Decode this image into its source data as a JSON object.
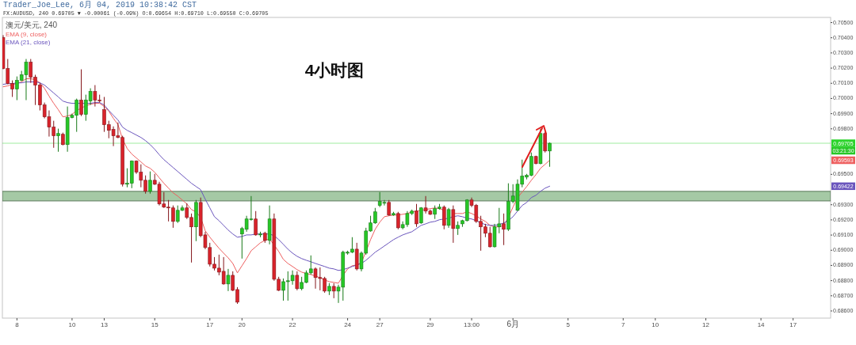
{
  "chart_data": {
    "type": "candlestick",
    "title": "4小时图",
    "subtitle": "FX:AUDUSD, 240 0.69705 ▼ -0.00061 (-0.09%) O:0.69654 H:0.69710 L:0.69550 C:0.69705",
    "legend_title": "澳元/美元, 240",
    "legend": "top left",
    "annotations": [
      "Trader_Joe_Lee, 6月 04, 2019 10:38:42 CST",
      {
        "text": "03:21:30",
        "y": 0.69705
      },
      {
        "text": "0.69593",
        "y": 0.69593
      },
      {
        "text": "0.69422",
        "y": 0.69422
      }
    ],
    "categories": [
      null,
      null,
      null,
      "8",
      null,
      null,
      null,
      null,
      null,
      null,
      null,
      null,
      null,
      null,
      null,
      "10",
      null,
      null,
      null,
      null,
      null,
      null,
      "13",
      null,
      null,
      null,
      null,
      null,
      null,
      null,
      null,
      null,
      null,
      "15",
      null,
      null,
      null,
      null,
      null,
      null,
      null,
      null,
      null,
      null,
      null,
      "17",
      null,
      null,
      null,
      null,
      null,
      null,
      "20",
      null,
      null,
      null,
      null,
      null,
      null,
      null,
      null,
      null,
      null,
      "22",
      null,
      null,
      null,
      null,
      null,
      null,
      null,
      null,
      null,
      null,
      null,
      "24",
      null,
      null,
      null,
      null,
      null,
      null,
      "27",
      null,
      null,
      null,
      null,
      null,
      null,
      null,
      null,
      null,
      null,
      "29",
      null,
      null,
      null,
      null,
      null,
      null,
      null,
      null,
      "13:00",
      null,
      null,
      null,
      null,
      null,
      null,
      null,
      null,
      "6月",
      null,
      null,
      null,
      null,
      null,
      null,
      null,
      null,
      null,
      null,
      null,
      "5",
      null,
      null,
      null,
      null,
      null,
      null,
      null,
      null,
      null,
      null,
      null,
      "7",
      null,
      null,
      null,
      null,
      null,
      null,
      "10",
      null,
      null,
      null,
      null,
      null,
      null,
      null,
      null,
      null,
      null,
      "12",
      null,
      null,
      null,
      null,
      null,
      null,
      null,
      null,
      null,
      null,
      null,
      "14",
      null,
      null,
      null,
      null,
      null,
      null,
      "17",
      null,
      null,
      null,
      null,
      null,
      null,
      null,
      null
    ],
    "ohlc": [
      [
        0.70401,
        0.70417,
        0.70192,
        0.70197
      ],
      [
        0.70197,
        0.7026,
        0.70093,
        0.70098
      ],
      [
        0.70098,
        0.70119,
        0.7001,
        0.70062
      ],
      [
        0.70062,
        0.70145,
        0.69989,
        0.70119
      ],
      [
        0.70119,
        0.70182,
        0.70114,
        0.70156
      ],
      [
        0.70156,
        0.7026,
        0.69989,
        0.70239
      ],
      [
        0.70239,
        0.7026,
        0.70103,
        0.7014
      ],
      [
        0.7014,
        0.70156,
        0.69957,
        0.70088
      ],
      [
        0.70088,
        0.70103,
        0.69921,
        0.69957
      ],
      [
        0.69957,
        0.69973,
        0.69869,
        0.69879
      ],
      [
        0.69879,
        0.69921,
        0.69749,
        0.69811
      ],
      [
        0.69811,
        0.69853,
        0.69675,
        0.69754
      ],
      [
        0.69754,
        0.69801,
        0.69649,
        0.69769
      ],
      [
        0.69764,
        0.69775,
        0.69691,
        0.69696
      ],
      [
        0.69696,
        0.69947,
        0.69649,
        0.69874
      ],
      [
        0.69874,
        0.699,
        0.69869,
        0.69889
      ],
      [
        0.69889,
        0.69999,
        0.6978,
        0.69989
      ],
      [
        0.69989,
        0.70192,
        0.69884,
        0.69895
      ],
      [
        0.69895,
        0.70025,
        0.69853,
        0.69989
      ],
      [
        0.69983,
        0.70067,
        0.69957,
        0.70046
      ],
      [
        0.70046,
        0.70088,
        0.69947,
        0.69989
      ],
      [
        0.69989,
        0.70025,
        0.69973,
        0.69983
      ],
      [
        0.69926,
        0.7001,
        0.6978,
        0.69827
      ],
      [
        0.69827,
        0.69853,
        0.69738,
        0.6979
      ],
      [
        0.69796,
        0.69816,
        0.69686,
        0.69754
      ],
      [
        0.69754,
        0.69842,
        0.69738,
        0.69743
      ],
      [
        0.69743,
        0.69754,
        0.6942,
        0.69435
      ],
      [
        0.69435,
        0.6954,
        0.69415,
        0.69441
      ],
      [
        0.69441,
        0.69592,
        0.69409,
        0.69587
      ],
      [
        0.69587,
        0.69592,
        0.69503,
        0.69514
      ],
      [
        0.69514,
        0.69566,
        0.69415,
        0.69461
      ],
      [
        0.69461,
        0.69493,
        0.69373,
        0.69388
      ],
      [
        0.69388,
        0.69519,
        0.69373,
        0.69461
      ],
      [
        0.69461,
        0.69503,
        0.6943,
        0.69435
      ],
      [
        0.69435,
        0.69451,
        0.69295,
        0.69305
      ],
      [
        0.69305,
        0.69383,
        0.69279,
        0.69284
      ],
      [
        0.69284,
        0.69331,
        0.6919,
        0.69279
      ],
      [
        0.69279,
        0.69295,
        0.69148,
        0.6919
      ],
      [
        0.6919,
        0.69295,
        0.6918,
        0.69263
      ],
      [
        0.69263,
        0.69295,
        0.69258,
        0.69279
      ],
      [
        0.69279,
        0.6931,
        0.69206,
        0.69216
      ],
      [
        0.69216,
        0.69242,
        0.68919,
        0.69154
      ],
      [
        0.69154,
        0.69331,
        0.6906,
        0.69315
      ],
      [
        0.69315,
        0.69347,
        0.69086,
        0.69096
      ],
      [
        0.69101,
        0.69122,
        0.69007,
        0.69018
      ],
      [
        0.69018,
        0.69049,
        0.68893,
        0.68908
      ],
      [
        0.68908,
        0.68955,
        0.68867,
        0.68882
      ],
      [
        0.68882,
        0.68971,
        0.68835,
        0.68856
      ],
      [
        0.68861,
        0.68955,
        0.68773,
        0.68778
      ],
      [
        0.68778,
        0.68877,
        0.68731,
        0.68835
      ],
      [
        0.68835,
        0.68861,
        0.68731,
        0.68736
      ],
      [
        0.68741,
        0.68757,
        0.68647,
        0.68658
      ],
      [
        0.69107,
        0.69154,
        0.68945,
        0.69143
      ],
      [
        0.69138,
        0.69227,
        0.69122,
        0.69206
      ],
      [
        0.69201,
        0.69357,
        0.69195,
        0.69206
      ],
      [
        0.69206,
        0.69258,
        0.69096,
        0.69101
      ],
      [
        0.69101,
        0.69122,
        0.69086,
        0.69107
      ],
      [
        0.69112,
        0.69122,
        0.69049,
        0.69065
      ],
      [
        0.69065,
        0.69295,
        0.69039,
        0.69206
      ],
      [
        0.69206,
        0.69242,
        0.68799,
        0.68809
      ],
      [
        0.68809,
        0.68825,
        0.68731,
        0.68736
      ],
      [
        0.68736,
        0.68814,
        0.68668,
        0.68793
      ],
      [
        0.68793,
        0.68861,
        0.68668,
        0.68799
      ],
      [
        0.68799,
        0.68867,
        0.68773,
        0.68835
      ],
      [
        0.68835,
        0.68861,
        0.68736,
        0.68747
      ],
      [
        0.68747,
        0.68825,
        0.68736,
        0.68788
      ],
      [
        0.68788,
        0.68867,
        0.68783,
        0.68851
      ],
      [
        0.68851,
        0.68966,
        0.6884,
        0.68877
      ],
      [
        0.68877,
        0.68887,
        0.68747,
        0.6882
      ],
      [
        0.6882,
        0.68887,
        0.68736,
        0.68814
      ],
      [
        0.68814,
        0.68825,
        0.6872,
        0.68731
      ],
      [
        0.68731,
        0.68783,
        0.68705,
        0.68762
      ],
      [
        0.68762,
        0.68783,
        0.68684,
        0.68731
      ],
      [
        0.68731,
        0.68773,
        0.68653,
        0.68757
      ],
      [
        0.68757,
        0.68997,
        0.68668,
        0.68987
      ],
      [
        0.68981,
        0.68997,
        0.68971,
        0.68987
      ],
      [
        0.68987,
        0.69086,
        0.68981,
        0.69007
      ],
      [
        0.69007,
        0.69049,
        0.68867,
        0.68877
      ],
      [
        0.68877,
        0.68992,
        0.68861,
        0.68981
      ],
      [
        0.68981,
        0.69148,
        0.68971,
        0.69127
      ],
      [
        0.69127,
        0.69227,
        0.69122,
        0.6918
      ],
      [
        0.6918,
        0.69279,
        0.69174,
        0.69253
      ],
      [
        0.69295,
        0.69383,
        0.69284,
        0.69321
      ],
      [
        0.6931,
        0.69331,
        0.69295,
        0.69315
      ],
      [
        0.69315,
        0.69331,
        0.69227,
        0.69232
      ],
      [
        0.69232,
        0.69253,
        0.69227,
        0.69242
      ],
      [
        0.69242,
        0.69253,
        0.69138,
        0.69148
      ],
      [
        0.69148,
        0.6919,
        0.69138,
        0.69169
      ],
      [
        0.69169,
        0.69258,
        0.69154,
        0.69242
      ],
      [
        0.69242,
        0.69268,
        0.69232,
        0.69258
      ],
      [
        0.69258,
        0.69305,
        0.69154,
        0.69174
      ],
      [
        0.6918,
        0.69284,
        0.69174,
        0.69279
      ],
      [
        0.69279,
        0.69357,
        0.69242,
        0.69258
      ],
      [
        0.69258,
        0.69268,
        0.69232,
        0.69237
      ],
      [
        0.69237,
        0.69295,
        0.69206,
        0.69274
      ],
      [
        0.69274,
        0.69305,
        0.69268,
        0.69284
      ],
      [
        0.69284,
        0.69295,
        0.69138,
        0.69164
      ],
      [
        0.69164,
        0.69279,
        0.69148,
        0.69268
      ],
      [
        0.69268,
        0.69295,
        0.69049,
        0.69143
      ],
      [
        0.69143,
        0.6919,
        0.69101,
        0.69164
      ],
      [
        0.69174,
        0.69201,
        0.69154,
        0.69195
      ],
      [
        0.69195,
        0.69336,
        0.6919,
        0.69331
      ],
      [
        0.69331,
        0.69347,
        0.69284,
        0.69295
      ],
      [
        0.69295,
        0.69305,
        0.6918,
        0.6919
      ],
      [
        0.6919,
        0.69227,
        0.68997,
        0.69154
      ],
      [
        0.69154,
        0.69174,
        0.69086,
        0.69112
      ],
      [
        0.69112,
        0.69154,
        0.69018,
        0.69023
      ],
      [
        0.69023,
        0.69174,
        0.69018,
        0.69154
      ],
      [
        0.69154,
        0.69279,
        0.69112,
        0.69174
      ],
      [
        0.69174,
        0.69242,
        0.69034,
        0.69138
      ],
      [
        0.69138,
        0.69441,
        0.69127,
        0.69321
      ],
      [
        0.69321,
        0.69435,
        0.6931,
        0.69357
      ],
      [
        0.69263,
        0.69467,
        0.69258,
        0.69435
      ],
      [
        0.69435,
        0.69597,
        0.69415,
        0.69488
      ],
      [
        0.69482,
        0.69503,
        0.69467,
        0.69493
      ],
      [
        0.69493,
        0.69644,
        0.69488,
        0.69618
      ],
      [
        0.69618,
        0.69623,
        0.69566,
        0.69571
      ],
      [
        0.69571,
        0.69801,
        0.69566,
        0.69769
      ],
      [
        0.69769,
        0.6978,
        0.69644,
        0.69654
      ],
      [
        0.69654,
        0.6971,
        0.6955,
        0.69705
      ],
      null,
      null,
      null,
      null,
      null,
      null,
      null,
      null,
      null,
      null,
      null,
      null,
      null,
      null,
      null,
      null,
      null,
      null,
      null,
      null,
      null,
      null,
      null,
      null,
      null,
      null,
      null,
      null,
      null,
      null,
      null,
      null,
      null,
      null,
      null,
      null,
      null,
      null,
      null,
      null,
      null,
      null,
      null,
      null,
      null,
      null,
      null,
      null,
      null,
      null,
      null,
      null,
      null,
      null,
      null,
      null,
      null,
      null,
      null,
      null,
      null
    ],
    "colors": [
      "#d9232b",
      "#d9232b",
      "#d9232b",
      "#26c826",
      "#26c826",
      "#26c826",
      "#d9232b",
      "#d9232b",
      "#d9232b",
      "#d9232b",
      "#d9232b",
      "#d9232b",
      "#26c826",
      "#d9232b",
      "#26c826",
      "#26c826",
      "#26c826",
      "#d9232b",
      "#26c826",
      "#26c826",
      "#d9232b",
      "#d9232b",
      "#d9232b",
      "#d9232b",
      "#d9232b",
      "#d9232b",
      "#d9232b",
      "#26c826",
      "#26c826",
      "#d9232b",
      "#d9232b",
      "#d9232b",
      "#26c826",
      "#d9232b",
      "#d9232b",
      "#d9232b",
      "#d9232b",
      "#d9232b",
      "#26c826",
      "#26c826",
      "#d9232b",
      "#d9232b",
      "#26c826",
      "#d9232b",
      "#d9232b",
      "#d9232b",
      "#d9232b",
      "#d9232b",
      "#d9232b",
      "#26c826",
      "#d9232b",
      "#d9232b",
      "#26c826",
      "#26c826",
      "#26c826",
      "#d9232b",
      "#26c826",
      "#d9232b",
      "#26c826",
      "#d9232b",
      "#d9232b",
      "#26c826",
      "#26c826",
      "#26c826",
      "#d9232b",
      "#26c826",
      "#26c826",
      "#26c826",
      "#d9232b",
      "#d9232b",
      "#d9232b",
      "#26c826",
      "#d9232b",
      "#26c826",
      "#26c826",
      "#26c826",
      "#26c826",
      "#d9232b",
      "#26c826",
      "#26c826",
      "#26c826",
      "#26c826",
      "#26c826",
      "#26c826",
      "#d9232b",
      "#26c826",
      "#d9232b",
      "#26c826",
      "#26c826",
      "#26c826",
      "#d9232b",
      "#26c826",
      "#d9232b",
      "#d9232b",
      "#26c826",
      "#26c826",
      "#d9232b",
      "#26c826",
      "#d9232b",
      "#26c826",
      "#26c826",
      "#26c826",
      "#d9232b",
      "#d9232b",
      "#d9232b",
      "#d9232b",
      "#d9232b",
      "#26c826",
      "#26c826",
      "#d9232b",
      "#26c826",
      "#26c826",
      "#26c826",
      "#26c826",
      "#26c826",
      "#26c826",
      "#d9232b",
      "#26c826",
      "#d9232b",
      "#26c826",
      null,
      null,
      null,
      null,
      null,
      null,
      null,
      null,
      null,
      null,
      null,
      null,
      null,
      null,
      null,
      null,
      null,
      null,
      null,
      null,
      null,
      null,
      null,
      null,
      null,
      null,
      null,
      null,
      null,
      null,
      null,
      null,
      null,
      null,
      null,
      null,
      null,
      null,
      null,
      null,
      null,
      null,
      null,
      null,
      null,
      null,
      null,
      null,
      null,
      null,
      null,
      null,
      null,
      null,
      null,
      null,
      null,
      null,
      null,
      null,
      null
    ],
    "series": [
      {
        "name": "EMA (9, close)",
        "type": "line",
        "color": "#ee5f5f",
        "values": [
          0.70077,
          0.70083,
          0.70093,
          0.70098,
          0.70109,
          0.7013,
          0.7013,
          0.70124,
          0.70103,
          0.70067,
          0.70015,
          0.69968,
          0.69926,
          0.69879,
          0.69884,
          0.69895,
          0.69921,
          0.69936,
          0.69952,
          0.69962,
          0.69968,
          0.69968,
          0.69947,
          0.69916,
          0.69869,
          0.69827,
          0.69733,
          0.6967,
          0.69634,
          0.69608,
          0.69582,
          0.69555,
          0.6954,
          0.69514,
          0.69477,
          0.69441,
          0.69409,
          0.69378,
          0.69357,
          0.69331,
          0.69305,
          0.69268,
          0.69253,
          0.69216,
          0.69128,
          0.69086,
          0.69049,
          0.69013,
          0.68981,
          0.6895,
          0.68913,
          0.68851,
          0.68898,
          0.68945,
          0.68997,
          0.69023,
          0.69049,
          0.69065,
          0.69075,
          0.69034,
          0.68992,
          0.6894,
          0.68913,
          0.68893,
          0.68872,
          0.68856,
          0.68846,
          0.6884,
          0.6883,
          0.6882,
          0.68804,
          0.68793,
          0.68788,
          0.68783,
          0.68835,
          0.68877,
          0.68898,
          0.68903,
          0.68919,
          0.68992,
          0.6907,
          0.69138,
          0.69185,
          0.69221,
          0.69227,
          0.69232,
          0.69232,
          0.69237,
          0.69242,
          0.69253,
          0.69258,
          0.69263,
          0.69268,
          0.69274,
          0.69279,
          0.69274,
          0.69263,
          null,
          0.69242,
          0.69242,
          0.69242,
          0.69253,
          0.69242,
          0.69227,
          0.69206,
          0.6919,
          0.69164,
          0.69154,
          0.69154,
          0.69164,
          0.69216,
          0.69284,
          0.69347,
          0.69383,
          0.6942,
          0.69461,
          0.69498,
          0.6954,
          0.69566,
          0.69593,
          null,
          null,
          null,
          null,
          null,
          null,
          null,
          null,
          null,
          null,
          null,
          null,
          null,
          null,
          null,
          null,
          null,
          null,
          null,
          null,
          null,
          null,
          null,
          null,
          null,
          null,
          null,
          null,
          null,
          null,
          null,
          null,
          null,
          null,
          null,
          null,
          null,
          null,
          null,
          null,
          null,
          null,
          null,
          null,
          null,
          null,
          null,
          null,
          null,
          null,
          null,
          null,
          null,
          null,
          null,
          null,
          null,
          null,
          null,
          null,
          null
        ]
      },
      {
        "name": "EMA (21, close)",
        "type": "line",
        "color": "#6a55bd",
        "values": [
          0.70093,
          0.70098,
          0.70098,
          0.70103,
          0.70103,
          0.70109,
          0.70109,
          0.70109,
          0.70103,
          0.70088,
          0.70062,
          0.70036,
          0.7001,
          0.69983,
          0.69973,
          0.69968,
          0.69968,
          0.69968,
          0.69968,
          0.69968,
          0.69973,
          0.69973,
          0.69957,
          0.69921,
          0.69889,
          0.69858,
          0.69811,
          0.6979,
          0.69775,
          0.69759,
          0.69743,
          0.69722,
          0.69696,
          0.69665,
          0.69629,
          0.69597,
          0.69571,
          0.69545,
          0.69519,
          0.69493,
          0.69467,
          0.69441,
          0.6942,
          0.69399,
          0.69336,
          0.69279,
          0.69221,
          0.69195,
          0.69164,
          0.69133,
          0.69107,
          0.69086,
          0.69091,
          0.69101,
          0.69101,
          0.69107,
          0.69107,
          0.69107,
          0.69107,
          0.69096,
          0.6907,
          0.69039,
          0.69007,
          0.68981,
          0.6896,
          0.68945,
          0.68934,
          0.68924,
          0.68913,
          0.68903,
          0.68893,
          0.68882,
          0.68877,
          0.68867,
          0.68872,
          0.68882,
          0.68893,
          0.68903,
          0.68913,
          0.68934,
          0.6896,
          0.68987,
          0.69007,
          0.69028,
          0.69049,
          0.6907,
          0.69086,
          0.69101,
          0.69112,
          0.69122,
          0.69143,
          0.69164,
          0.69174,
          0.69185,
          0.6919,
          0.69201,
          0.69206,
          0.69211,
          0.69221,
          0.69227,
          0.69221,
          0.69211,
          0.69206,
          0.69195,
          0.6918,
          0.69169,
          0.69164,
          0.69164,
          0.69169,
          0.6918,
          0.69195,
          0.69221,
          0.69258,
          0.69295,
          0.69315,
          0.69347,
          0.69362,
          0.69388,
          0.69409,
          0.69422,
          null,
          null,
          null,
          null,
          null,
          null,
          null,
          null,
          null,
          null,
          null,
          null,
          null,
          null,
          null,
          null,
          null,
          null,
          null,
          null,
          null,
          null,
          null,
          null,
          null,
          null,
          null,
          null,
          null,
          null,
          null,
          null,
          null,
          null,
          null,
          null,
          null,
          null,
          null,
          null,
          null,
          null,
          null,
          null,
          null,
          null,
          null,
          null,
          null,
          null,
          null,
          null,
          null,
          null,
          null,
          null,
          null,
          null,
          null,
          null,
          null
        ]
      }
    ],
    "ylim": [
      0.68553,
      0.70534
    ],
    "yticks": [
      {
        "value": 0.705,
        "label": "0.70500"
      },
      {
        "value": 0.704,
        "label": "0.70400"
      },
      {
        "value": 0.703,
        "label": "0.70300"
      },
      {
        "value": 0.702,
        "label": "0.70200"
      },
      {
        "value": 0.701,
        "label": "0.70100"
      },
      {
        "value": 0.7,
        "label": "0.70000"
      },
      {
        "value": 0.699,
        "label": "0.69900"
      },
      {
        "value": 0.698,
        "label": "0.69800"
      },
      {
        "value": 0.695,
        "label": "0.69500"
      },
      {
        "value": 0.693,
        "label": "0.69300"
      },
      {
        "value": 0.692,
        "label": "0.69200"
      },
      {
        "value": 0.691,
        "label": "0.69100"
      },
      {
        "value": 0.69,
        "label": "0.69000"
      },
      {
        "value": 0.689,
        "label": "0.68900"
      },
      {
        "value": 0.688,
        "label": "0.68800"
      },
      {
        "value": 0.687,
        "label": "0.68700"
      },
      {
        "value": 0.686,
        "label": "0.68600"
      }
    ],
    "ref_lines": [
      {
        "axis": "y",
        "value": 0.69705,
        "label": "0.69705",
        "color": "#2ad42a"
      }
    ],
    "bands": [
      {
        "axis": "y",
        "from": 0.69325,
        "to": 0.69388,
        "color": "#8fbc8f"
      }
    ]
  }
}
